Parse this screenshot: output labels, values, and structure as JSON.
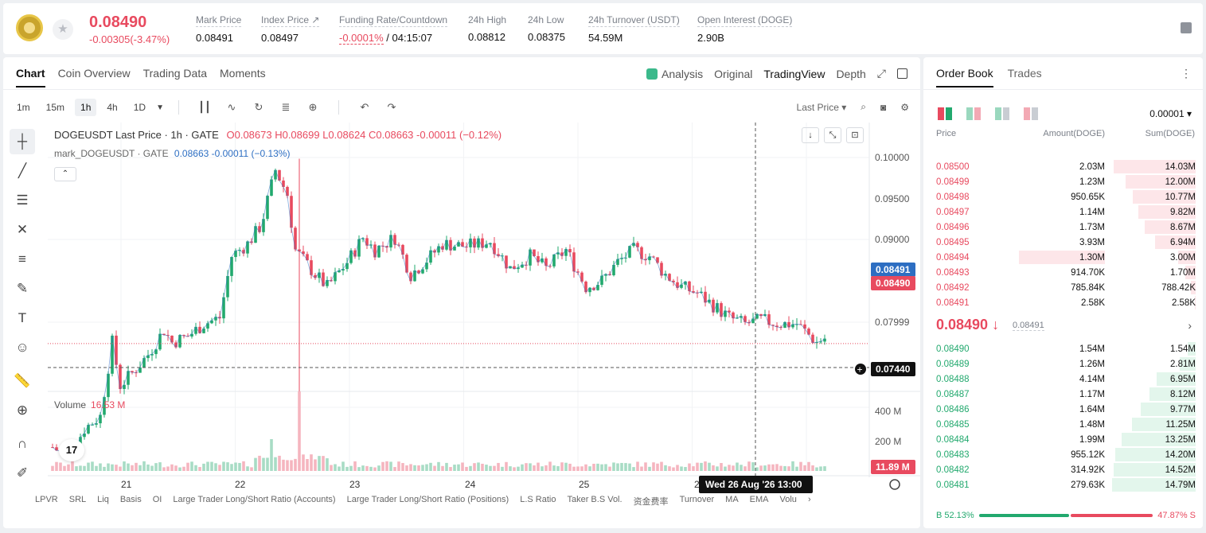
{
  "header": {
    "last_price": "0.08490",
    "change": "-0.00305(-3.47%)",
    "stats": [
      {
        "label": "Mark Price",
        "value": "0.08491"
      },
      {
        "label": "Index Price ↗",
        "value": "0.08497"
      },
      {
        "label": "Funding Rate/Countdown",
        "value_red": "-0.0001%",
        "value": " / 04:15:07"
      },
      {
        "label": "24h High",
        "value": "0.08812"
      },
      {
        "label": "24h Low",
        "value": "0.08375"
      },
      {
        "label": "24h Turnover (USDT)",
        "value": "54.59M"
      },
      {
        "label": "Open Interest (DOGE)",
        "value": "2.90B"
      }
    ]
  },
  "chart_tabs": [
    "Chart",
    "Coin Overview",
    "Trading Data",
    "Moments"
  ],
  "view_tabs": {
    "analysis": "Analysis",
    "original": "Original",
    "tradingview": "TradingView",
    "depth": "Depth"
  },
  "toolbar": {
    "intervals": [
      "1m",
      "15m",
      "1h",
      "4h",
      "1D"
    ],
    "active_interval": "1h",
    "last_price_select": "Last Price"
  },
  "legend": {
    "symbol": "DOGEUSDT Last Price · 1h · GATE",
    "ohlc": "O0.08673 H0.08699 L0.08624 C0.08663 -0.00011 (−0.12%)",
    "mark_symbol": "mark_DOGEUSDT · GATE",
    "mark_vals": "0.08663 -0.00011 (−0.13%)",
    "volume_label": "Volume",
    "volume_value": "16.53 M"
  },
  "price_axis": [
    "0.10000",
    "0.09500",
    "0.09000",
    "0.07999"
  ],
  "volume_axis": [
    "400 M",
    "200 M"
  ],
  "price_tags": {
    "mark": "0.08491",
    "last": "0.08490",
    "crosshair": "0.07440",
    "volume": "11.89 M"
  },
  "time_axis": [
    "21",
    "22",
    "23",
    "24",
    "25",
    "26"
  ],
  "crosshair_time": "Wed 26 Aug '26   13:00",
  "bottom_indicators": [
    "LPVR",
    "SRL",
    "Liq",
    "Basis",
    "OI",
    "Large Trader Long/Short Ratio (Accounts)",
    "Large Trader Long/Short Ratio (Positions)",
    "L.S Ratio",
    "Taker B.S Vol.",
    "资金费率",
    "Turnover",
    "MA",
    "EMA",
    "Volu"
  ],
  "order_book": {
    "tabs": [
      "Order Book",
      "Trades"
    ],
    "precision": "0.00001",
    "headers": {
      "price": "Price",
      "amount": "Amount(DOGE)",
      "sum": "Sum(DOGE)"
    },
    "asks": [
      {
        "price": "0.08500",
        "amount": "2.03M",
        "sum": "14.03M",
        "depth": 0.98
      },
      {
        "price": "0.08499",
        "amount": "1.23M",
        "sum": "12.00M",
        "depth": 0.84
      },
      {
        "price": "0.08498",
        "amount": "950.65K",
        "sum": "10.77M",
        "depth": 0.75
      },
      {
        "price": "0.08497",
        "amount": "1.14M",
        "sum": "9.82M",
        "depth": 0.69
      },
      {
        "price": "0.08496",
        "amount": "1.73M",
        "sum": "8.67M",
        "depth": 0.61
      },
      {
        "price": "0.08495",
        "amount": "3.93M",
        "sum": "6.94M",
        "depth": 0.49
      },
      {
        "price": "0.08494",
        "amount": "1.30M",
        "sum": "3.00M",
        "depth": 0.21
      },
      {
        "price": "0.08493",
        "amount": "914.70K",
        "sum": "1.70M",
        "depth": 0.12
      },
      {
        "price": "0.08492",
        "amount": "785.84K",
        "sum": "788.42K",
        "depth": 0.06
      },
      {
        "price": "0.08491",
        "amount": "2.58K",
        "sum": "2.58K",
        "depth": 0.01
      }
    ],
    "mid_price": "0.08490 ↓",
    "mid_ref": "0.08491",
    "bids": [
      {
        "price": "0.08490",
        "amount": "1.54M",
        "sum": "1.54M",
        "depth": 0.1
      },
      {
        "price": "0.08489",
        "amount": "1.26M",
        "sum": "2.81M",
        "depth": 0.19
      },
      {
        "price": "0.08488",
        "amount": "4.14M",
        "sum": "6.95M",
        "depth": 0.47
      },
      {
        "price": "0.08487",
        "amount": "1.17M",
        "sum": "8.12M",
        "depth": 0.55
      },
      {
        "price": "0.08486",
        "amount": "1.64M",
        "sum": "9.77M",
        "depth": 0.66
      },
      {
        "price": "0.08485",
        "amount": "1.48M",
        "sum": "11.25M",
        "depth": 0.76
      },
      {
        "price": "0.08484",
        "amount": "1.99M",
        "sum": "13.25M",
        "depth": 0.89
      },
      {
        "price": "0.08483",
        "amount": "955.12K",
        "sum": "14.20M",
        "depth": 0.96
      },
      {
        "price": "0.08482",
        "amount": "314.92K",
        "sum": "14.52M",
        "depth": 0.98
      },
      {
        "price": "0.08481",
        "amount": "279.63K",
        "sum": "14.79M",
        "depth": 1.0
      }
    ],
    "buy_ratio": "B 52.13%",
    "sell_ratio": "47.87% S",
    "buy_fraction": 0.5213
  },
  "colors": {
    "up": "#22a96e",
    "down": "#e84a5f",
    "up_bg": "#e3f6ec",
    "down_bg": "#fde6e9"
  }
}
